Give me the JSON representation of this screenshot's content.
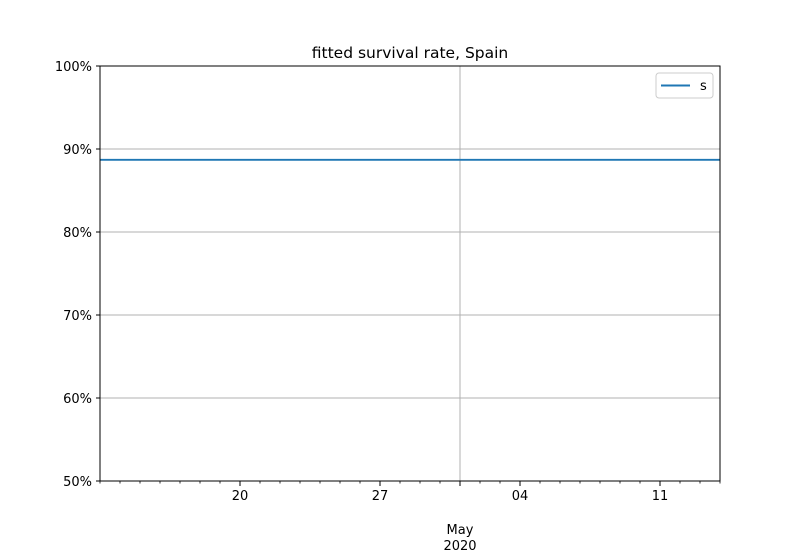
{
  "chart_data": {
    "type": "line",
    "title": "fitted survival rate, Spain",
    "xlabel": "",
    "ylabel": "",
    "x_range": [
      "2020-04-13",
      "2020-05-14"
    ],
    "x_major_ticks": [
      {
        "date": "2020-04-20",
        "label": "20"
      },
      {
        "date": "2020-04-27",
        "label": "27"
      },
      {
        "date": "2020-05-04",
        "label": "04"
      },
      {
        "date": "2020-05-11",
        "label": "11"
      }
    ],
    "x_month_tick": {
      "date": "2020-05-01",
      "label": "May",
      "year": "2020"
    },
    "y_ticks": [
      0.5,
      0.6,
      0.7,
      0.8,
      0.9,
      1.0
    ],
    "y_tick_labels": [
      "50%",
      "60%",
      "70%",
      "80%",
      "90%",
      "100%"
    ],
    "ylim": [
      0.5,
      1.0
    ],
    "grid": true,
    "legend_position": "top-right",
    "series": [
      {
        "name": "s",
        "color": "#1f77b4",
        "x": [
          "2020-04-13",
          "2020-05-14"
        ],
        "values": [
          0.887,
          0.887
        ]
      }
    ]
  }
}
